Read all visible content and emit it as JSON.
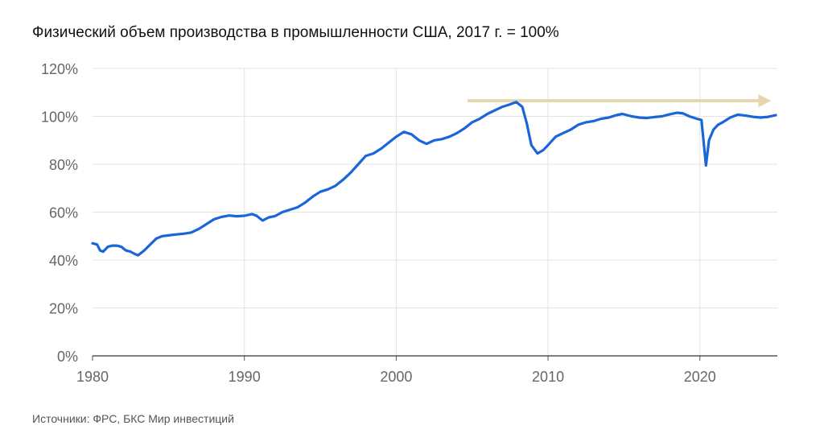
{
  "title": "Физический объем производства в промышленности США, 2017 г. = 100%",
  "source": "Источники: ФРС, БКС Мир инвестиций",
  "chart_data": {
    "type": "line",
    "xlabel": "",
    "ylabel": "",
    "xlim": [
      1980,
      2025.1
    ],
    "ylim": [
      0,
      120
    ],
    "y_ticks": [
      0,
      20,
      40,
      60,
      80,
      100,
      120
    ],
    "y_tick_labels": [
      "0%",
      "20%",
      "40%",
      "60%",
      "80%",
      "100%",
      "120%"
    ],
    "x_ticks": [
      1980,
      1990,
      2000,
      2010,
      2020
    ],
    "x_tick_labels": [
      "1980",
      "1990",
      "2000",
      "2010",
      "2020"
    ],
    "grid": true,
    "series": [
      {
        "color": "#1a66d9",
        "points": [
          [
            1980.0,
            47
          ],
          [
            1980.3,
            46.5
          ],
          [
            1980.5,
            44
          ],
          [
            1980.7,
            43.5
          ],
          [
            1981.0,
            45.5
          ],
          [
            1981.3,
            46
          ],
          [
            1981.6,
            46
          ],
          [
            1981.9,
            45.5
          ],
          [
            1982.2,
            44
          ],
          [
            1982.5,
            43.5
          ],
          [
            1982.8,
            42.5
          ],
          [
            1983.0,
            42
          ],
          [
            1983.4,
            44
          ],
          [
            1983.8,
            46.5
          ],
          [
            1984.2,
            49
          ],
          [
            1984.6,
            50
          ],
          [
            1985.0,
            50.3
          ],
          [
            1985.5,
            50.7
          ],
          [
            1986.0,
            51
          ],
          [
            1986.5,
            51.5
          ],
          [
            1987.0,
            53
          ],
          [
            1987.5,
            55
          ],
          [
            1988.0,
            57
          ],
          [
            1988.5,
            58
          ],
          [
            1989.0,
            58.6
          ],
          [
            1989.5,
            58.3
          ],
          [
            1990.0,
            58.5
          ],
          [
            1990.5,
            59.2
          ],
          [
            1990.8,
            58.5
          ],
          [
            1991.2,
            56.5
          ],
          [
            1991.6,
            57.8
          ],
          [
            1992.0,
            58.3
          ],
          [
            1992.5,
            60
          ],
          [
            1993.0,
            61
          ],
          [
            1993.5,
            62
          ],
          [
            1994.0,
            64
          ],
          [
            1994.5,
            66.5
          ],
          [
            1995.0,
            68.5
          ],
          [
            1995.5,
            69.5
          ],
          [
            1996.0,
            71
          ],
          [
            1996.5,
            73.5
          ],
          [
            1997.0,
            76.5
          ],
          [
            1997.5,
            80
          ],
          [
            1998.0,
            83.5
          ],
          [
            1998.5,
            84.5
          ],
          [
            1999.0,
            86.5
          ],
          [
            1999.5,
            89
          ],
          [
            2000.0,
            91.5
          ],
          [
            2000.5,
            93.5
          ],
          [
            2001.0,
            92.5
          ],
          [
            2001.5,
            90
          ],
          [
            2002.0,
            88.5
          ],
          [
            2002.5,
            90
          ],
          [
            2003.0,
            90.5
          ],
          [
            2003.5,
            91.5
          ],
          [
            2004.0,
            93
          ],
          [
            2004.5,
            95
          ],
          [
            2005.0,
            97.5
          ],
          [
            2005.5,
            99
          ],
          [
            2006.0,
            101
          ],
          [
            2006.5,
            102.5
          ],
          [
            2007.0,
            104
          ],
          [
            2007.5,
            105
          ],
          [
            2007.9,
            106
          ],
          [
            2008.3,
            104
          ],
          [
            2008.6,
            97
          ],
          [
            2008.9,
            88
          ],
          [
            2009.3,
            84.5
          ],
          [
            2009.7,
            86
          ],
          [
            2010.0,
            88
          ],
          [
            2010.5,
            91.5
          ],
          [
            2011.0,
            93
          ],
          [
            2011.5,
            94.5
          ],
          [
            2012.0,
            96.5
          ],
          [
            2012.5,
            97.5
          ],
          [
            2013.0,
            98
          ],
          [
            2013.5,
            99
          ],
          [
            2014.0,
            99.5
          ],
          [
            2014.5,
            100.5
          ],
          [
            2014.9,
            101
          ],
          [
            2015.5,
            100
          ],
          [
            2016.0,
            99.5
          ],
          [
            2016.5,
            99.3
          ],
          [
            2017.0,
            99.7
          ],
          [
            2017.5,
            100
          ],
          [
            2018.0,
            100.8
          ],
          [
            2018.5,
            101.5
          ],
          [
            2018.9,
            101.2
          ],
          [
            2019.3,
            100
          ],
          [
            2019.8,
            99
          ],
          [
            2020.1,
            98.5
          ],
          [
            2020.3,
            86
          ],
          [
            2020.4,
            79.5
          ],
          [
            2020.6,
            90
          ],
          [
            2020.9,
            94.5
          ],
          [
            2021.2,
            96.5
          ],
          [
            2021.5,
            97.5
          ],
          [
            2022.0,
            99.5
          ],
          [
            2022.5,
            100.7
          ],
          [
            2023.0,
            100.3
          ],
          [
            2023.5,
            99.8
          ],
          [
            2024.0,
            99.5
          ],
          [
            2024.5,
            99.8
          ],
          [
            2025.0,
            100.5
          ]
        ]
      }
    ],
    "trend_arrow": {
      "color": "#e5d6b0",
      "start": [
        2004.7,
        106.5
      ],
      "end": [
        2024.7,
        106.5
      ]
    }
  }
}
